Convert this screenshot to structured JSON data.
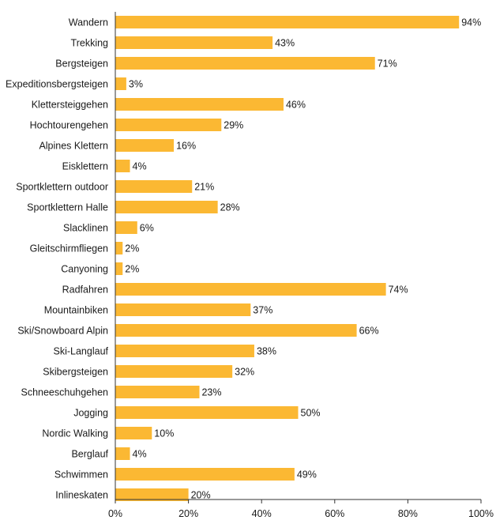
{
  "chart_data": {
    "type": "bar",
    "orientation": "horizontal",
    "categories": [
      "Wandern",
      "Trekking",
      "Bergsteigen",
      "Expeditionsbergsteigen",
      "Klettersteiggehen",
      "Hochtourengehen",
      "Alpines Klettern",
      "Eisklettern",
      "Sportklettern outdoor",
      "Sportklettern Halle",
      "Slacklinen",
      "Gleitschirmfliegen",
      "Canyoning",
      "Radfahren",
      "Mountainbiken",
      "Ski/Snowboard Alpin",
      "Ski-Langlauf",
      "Skibergsteigen",
      "Schneeschuhgehen",
      "Jogging",
      "Nordic Walking",
      "Berglauf",
      "Schwimmen",
      "Inlineskaten"
    ],
    "values": [
      94,
      43,
      71,
      3,
      46,
      29,
      16,
      4,
      21,
      28,
      6,
      2,
      2,
      74,
      37,
      66,
      38,
      32,
      23,
      50,
      10,
      4,
      49,
      20
    ],
    "value_labels": [
      "94%",
      "43%",
      "71%",
      "3%",
      "46%",
      "29%",
      "16%",
      "4%",
      "21%",
      "28%",
      "6%",
      "2%",
      "2%",
      "74%",
      "37%",
      "66%",
      "38%",
      "32%",
      "23%",
      "50%",
      "10%",
      "4%",
      "49%",
      "20%"
    ],
    "xlim": [
      0,
      100
    ],
    "xticks": [
      0,
      20,
      40,
      60,
      80,
      100
    ],
    "xtick_labels": [
      "0%",
      "20%",
      "40%",
      "60%",
      "80%",
      "100%"
    ],
    "bar_color": "#fbb833",
    "grid": false,
    "title": "",
    "xlabel": "",
    "ylabel": ""
  }
}
